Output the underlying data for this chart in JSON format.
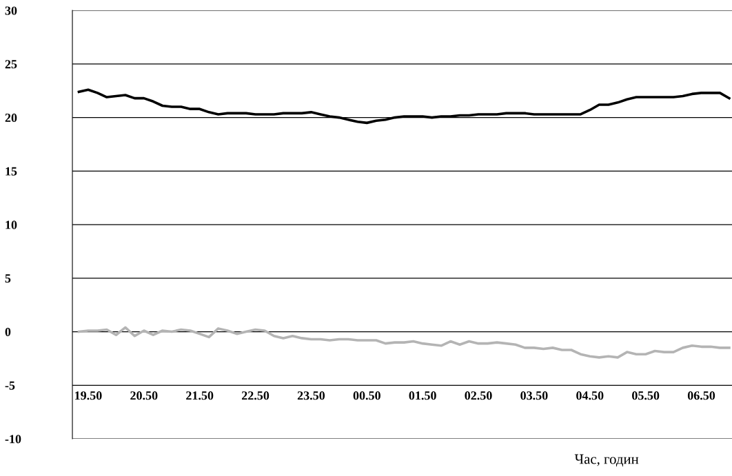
{
  "chart_data": {
    "type": "line",
    "xlabel": "Час, годин",
    "categories": [
      null,
      "19.50",
      null,
      null,
      null,
      null,
      null,
      "20.50",
      null,
      null,
      null,
      null,
      null,
      "21.50",
      null,
      null,
      null,
      null,
      null,
      "22.50",
      null,
      null,
      null,
      null,
      null,
      "23.50",
      null,
      null,
      null,
      null,
      null,
      "00.50",
      null,
      null,
      null,
      null,
      null,
      "01.50",
      null,
      null,
      null,
      null,
      null,
      "02.50",
      null,
      null,
      null,
      null,
      null,
      "03.50",
      null,
      null,
      null,
      null,
      null,
      "04.50",
      null,
      null,
      null,
      null,
      null,
      "05.50",
      null,
      null,
      null,
      null,
      null,
      "06.50",
      null,
      null,
      null
    ],
    "ylim": [
      -10,
      30
    ],
    "yticks": [
      -10,
      -5,
      0,
      5,
      10,
      15,
      20,
      25,
      30
    ],
    "grid": "y",
    "marker": "none",
    "line_style": "solid",
    "series": [
      {
        "color": "#000000",
        "values": [
          22.4,
          22.6,
          22.3,
          21.9,
          22.0,
          22.1,
          21.8,
          21.8,
          21.5,
          21.1,
          21.0,
          21.0,
          20.8,
          20.8,
          20.5,
          20.3,
          20.4,
          20.4,
          20.4,
          20.3,
          20.3,
          20.3,
          20.4,
          20.4,
          20.4,
          20.5,
          20.3,
          20.1,
          20.0,
          19.8,
          19.6,
          19.5,
          19.7,
          19.8,
          20.0,
          20.1,
          20.1,
          20.1,
          20.0,
          20.1,
          20.1,
          20.2,
          20.2,
          20.3,
          20.3,
          20.3,
          20.4,
          20.4,
          20.4,
          20.3,
          20.3,
          20.3,
          20.3,
          20.3,
          20.3,
          20.7,
          21.2,
          21.2,
          21.4,
          21.7,
          21.9,
          21.9,
          21.9,
          21.9,
          21.9,
          22.0,
          22.2,
          22.3,
          22.3,
          22.3,
          21.8
        ]
      },
      {
        "color": "#b4b4b4",
        "values": [
          0.0,
          0.1,
          0.1,
          0.2,
          -0.3,
          0.4,
          -0.4,
          0.1,
          -0.3,
          0.1,
          0.0,
          0.2,
          0.1,
          -0.2,
          -0.5,
          0.3,
          0.1,
          -0.2,
          0.0,
          0.2,
          0.1,
          -0.4,
          -0.6,
          -0.4,
          -0.6,
          -0.7,
          -0.7,
          -0.8,
          -0.7,
          -0.7,
          -0.8,
          -0.8,
          -0.8,
          -1.1,
          -1.0,
          -1.0,
          -0.9,
          -1.1,
          -1.2,
          -1.3,
          -0.9,
          -1.2,
          -0.9,
          -1.1,
          -1.1,
          -1.0,
          -1.1,
          -1.2,
          -1.5,
          -1.5,
          -1.6,
          -1.5,
          -1.7,
          -1.7,
          -2.1,
          -2.3,
          -2.4,
          -2.3,
          -2.4,
          -1.9,
          -2.1,
          -2.1,
          -1.8,
          -1.9,
          -1.9,
          -1.5,
          -1.3,
          -1.4,
          -1.4,
          -1.5,
          -1.5
        ]
      }
    ]
  }
}
